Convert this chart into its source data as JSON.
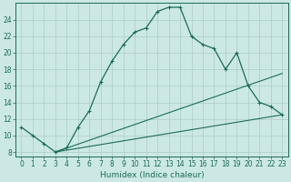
{
  "title": "",
  "xlabel": "Humidex (Indice chaleur)",
  "bg_color": "#cce8e4",
  "line_color": "#1a6b5a",
  "grid_color": "#aaccc8",
  "xlim": [
    -0.5,
    23.5
  ],
  "ylim": [
    7.5,
    26
  ],
  "xticks": [
    0,
    1,
    2,
    3,
    4,
    5,
    6,
    7,
    8,
    9,
    10,
    11,
    12,
    13,
    14,
    15,
    16,
    17,
    18,
    19,
    20,
    21,
    22,
    23
  ],
  "yticks": [
    8,
    10,
    12,
    14,
    16,
    18,
    20,
    22,
    24
  ],
  "curve1_x": [
    0,
    1,
    2,
    3,
    4,
    5,
    6,
    7,
    8,
    9,
    10,
    11,
    12,
    13,
    14,
    15,
    16,
    17,
    18,
    19,
    20,
    21,
    22,
    23
  ],
  "curve1_y": [
    11,
    10,
    9,
    8,
    8.5,
    11,
    13,
    16.5,
    19,
    21,
    22.5,
    23,
    25,
    25.5,
    25.5,
    22,
    21,
    20.5,
    18,
    20,
    16,
    14,
    13.5,
    12.5
  ],
  "curve2_x": [
    3,
    23
  ],
  "curve2_y": [
    8,
    17.5
  ],
  "curve3_x": [
    3,
    23
  ],
  "curve3_y": [
    8,
    12.5
  ],
  "xlabel_fontsize": 6.5,
  "tick_fontsize": 5.5
}
